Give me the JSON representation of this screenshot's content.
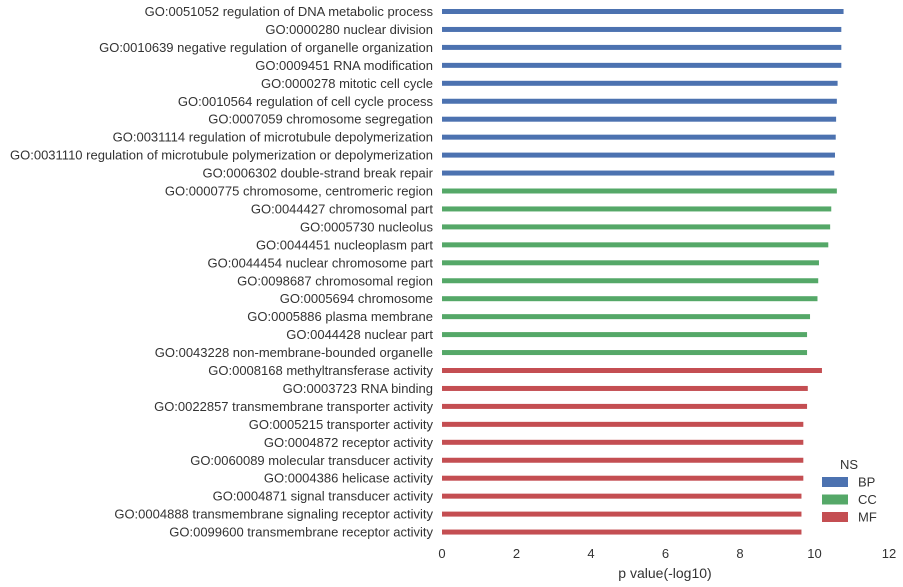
{
  "chart_data": {
    "type": "bar",
    "orientation": "horizontal",
    "xlabel": "p value(-log10)",
    "xlim": [
      0,
      12
    ],
    "xticks": [
      "0",
      "2",
      "4",
      "6",
      "8",
      "10",
      "12"
    ],
    "legend": {
      "title": "NS",
      "placement": "bottom-right"
    },
    "grid": false,
    "series": [
      {
        "name": "BP",
        "color": "#4C72B0",
        "categories": [
          "GO:0051052 regulation of DNA metabolic process",
          "GO:0000280 nuclear division",
          "GO:0010639 negative regulation of organelle organization",
          "GO:0009451 RNA modification",
          "GO:0000278 mitotic cell cycle",
          "GO:0010564 regulation of cell cycle process",
          "GO:0007059 chromosome segregation",
          "GO:0031114 regulation of microtubule depolymerization",
          "GO:0031110 regulation of microtubule polymerization or depolymerization",
          "GO:0006302 double-strand break repair"
        ],
        "values": [
          10.78,
          10.72,
          10.72,
          10.72,
          10.62,
          10.6,
          10.58,
          10.57,
          10.55,
          10.53
        ]
      },
      {
        "name": "CC",
        "color": "#55A868",
        "categories": [
          "GO:0000775 chromosome, centromeric region",
          "GO:0044427 chromosomal part",
          "GO:0005730 nucleolus",
          "GO:0044451 nucleoplasm part",
          "GO:0044454 nuclear chromosome part",
          "GO:0098687 chromosomal region",
          "GO:0005694 chromosome",
          "GO:0005886 plasma membrane",
          "GO:0044428 nuclear part",
          "GO:0043228 non-membrane-bounded organelle"
        ],
        "values": [
          10.6,
          10.45,
          10.42,
          10.37,
          10.12,
          10.1,
          10.08,
          9.88,
          9.8,
          9.8
        ]
      },
      {
        "name": "MF",
        "color": "#C44E52",
        "categories": [
          "GO:0008168 methyltransferase activity",
          "GO:0003723 RNA binding",
          "GO:0022857 transmembrane transporter activity",
          "GO:0005215 transporter activity",
          "GO:0004872 receptor activity",
          "GO:0060089 molecular transducer activity",
          "GO:0004386 helicase activity",
          "GO:0004871 signal transducer activity",
          "GO:0004888 transmembrane signaling receptor activity",
          "GO:0099600 transmembrane receptor activity"
        ],
        "values": [
          10.2,
          9.82,
          9.8,
          9.7,
          9.7,
          9.7,
          9.7,
          9.65,
          9.65,
          9.65
        ]
      }
    ]
  }
}
